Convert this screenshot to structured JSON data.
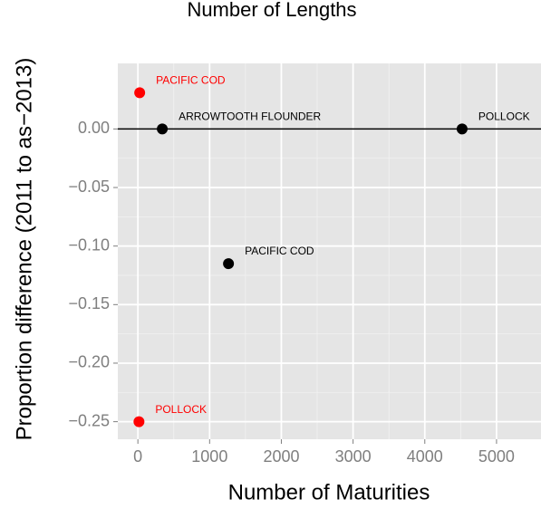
{
  "chart_data": {
    "type": "scatter",
    "title": "Number of Lengths",
    "x_label": "Number of Maturities",
    "y_label": "Proportion difference (2011 to as−2013)",
    "xlim": [
      -280,
      5620
    ],
    "ylim": [
      -0.265,
      0.056
    ],
    "xticks": [
      0,
      1000,
      2000,
      3000,
      4000,
      5000
    ],
    "yticks": [
      {
        "value": 0,
        "label": "0.00"
      },
      {
        "value": -0.05,
        "label": "−0.05"
      },
      {
        "value": -0.1,
        "label": "−0.10"
      },
      {
        "value": -0.15,
        "label": "−0.15"
      },
      {
        "value": -0.2,
        "label": "−0.20"
      },
      {
        "value": -0.25,
        "label": "−0.25"
      }
    ],
    "grid": true,
    "hline": 0,
    "series": [
      {
        "color": "#ff0000",
        "x": [
          25,
          15
        ],
        "values": [
          0.031,
          -0.25
        ],
        "labels": [
          "PACIFIC COD",
          "POLLOCK"
        ]
      },
      {
        "color": "#000000",
        "x": [
          340,
          1263,
          4520
        ],
        "values": [
          0,
          -0.115,
          0
        ],
        "labels": [
          "ARROWTOOTH FLOUNDER",
          "PACIFIC COD",
          "POLLOCK"
        ]
      }
    ]
  }
}
